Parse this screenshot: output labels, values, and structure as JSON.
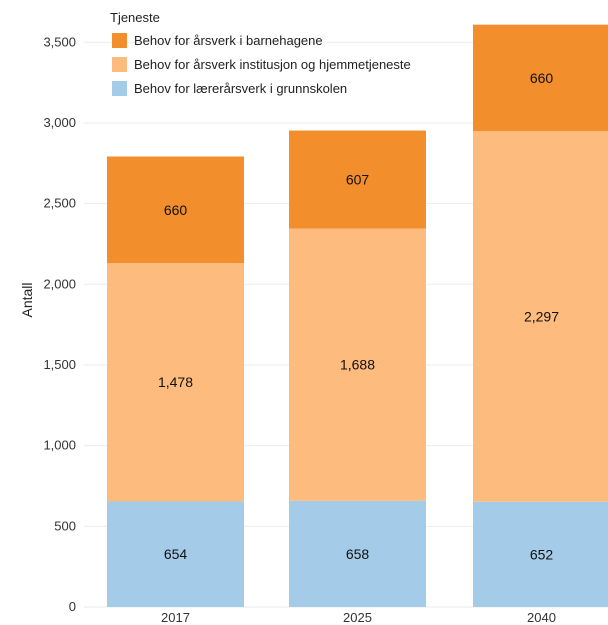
{
  "chart_data": {
    "type": "bar",
    "stacked": true,
    "categories": [
      "2017",
      "2025",
      "2040"
    ],
    "series": [
      {
        "name": "Behov for lærerårsverk i grunnskolen",
        "color": "#a4cbe8",
        "values": [
          654,
          658,
          652
        ]
      },
      {
        "name": "Behov for årsverk institusjon og hjemmetjeneste",
        "color": "#fdbb7d",
        "values": [
          1478,
          1688,
          2297
        ]
      },
      {
        "name": "Behov for årsverk i barnehagene",
        "color": "#f28e2c",
        "values": [
          660,
          607,
          660
        ]
      }
    ],
    "legend_order": [
      2,
      1,
      0
    ],
    "legend_title": "Tjeneste",
    "legend_placement": "top-left",
    "ylabel": "Antall",
    "ylim": [
      0,
      3700
    ],
    "yticks": [
      "0",
      "500",
      "1,000",
      "1,500",
      "2,000",
      "2,500",
      "3,000",
      "3,500"
    ],
    "ytick_values": [
      0,
      500,
      1000,
      1500,
      2000,
      2500,
      3000,
      3500
    ],
    "grid": true
  }
}
